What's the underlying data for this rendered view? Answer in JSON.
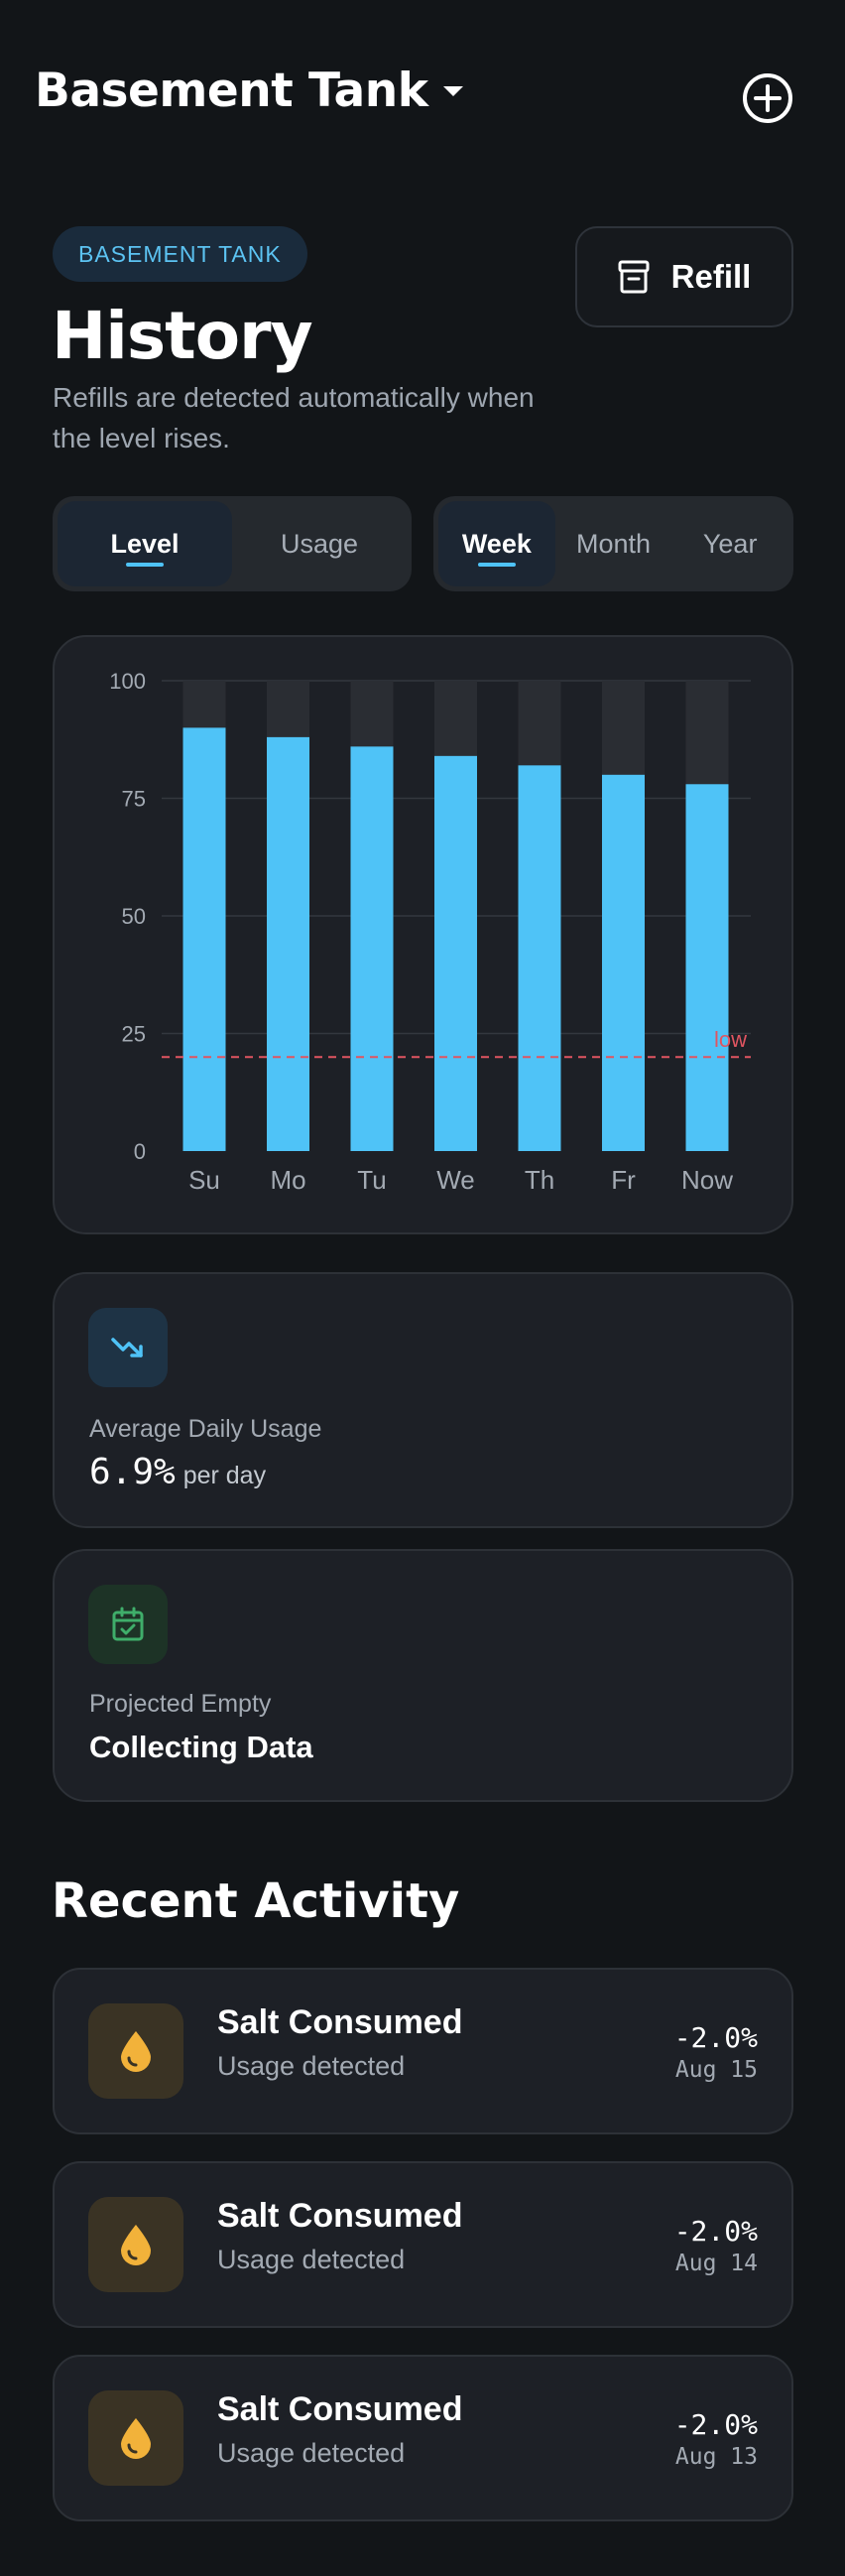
{
  "header": {
    "tank_name": "Basement Tank"
  },
  "badge": "BASEMENT TANK",
  "refill_label": "Refill",
  "page_title": "History",
  "subtitle": "Refills are detected automatically when the level rises.",
  "metric_toggle": {
    "options": [
      "Level",
      "Usage"
    ],
    "selected": "Level"
  },
  "period_toggle": {
    "options": [
      "Week",
      "Month",
      "Year"
    ],
    "selected": "Week"
  },
  "chart_data": {
    "type": "bar",
    "categories": [
      "Su",
      "Mo",
      "Tu",
      "We",
      "Th",
      "Fr",
      "Now"
    ],
    "values": [
      90,
      88,
      86,
      84,
      82,
      80,
      78
    ],
    "ylim": [
      0,
      100
    ],
    "y_ticks": [
      0,
      25,
      50,
      75,
      100
    ],
    "threshold": {
      "value": 20,
      "label": "low",
      "color": "#e05561"
    },
    "bar_color": "#4fc3f7",
    "track_color": "#2a2d33",
    "grid": true
  },
  "stats": {
    "avg_usage": {
      "label": "Average Daily Usage",
      "value": "6.9%",
      "unit": "per day",
      "icon": "trending-down-icon"
    },
    "projected_empty": {
      "label": "Projected Empty",
      "value": "Collecting Data",
      "icon": "calendar-check-icon"
    }
  },
  "recent_activity": {
    "title": "Recent Activity",
    "items": [
      {
        "title": "Salt Consumed",
        "subtitle": "Usage detected",
        "amount": "-2.0%",
        "date": "Aug 15",
        "icon": "drop-icon"
      },
      {
        "title": "Salt Consumed",
        "subtitle": "Usage detected",
        "amount": "-2.0%",
        "date": "Aug 14",
        "icon": "drop-icon"
      },
      {
        "title": "Salt Consumed",
        "subtitle": "Usage detected",
        "amount": "-2.0%",
        "date": "Aug 13",
        "icon": "drop-icon"
      }
    ]
  },
  "colors": {
    "accent": "#4fc3f7",
    "warning": "#f2b23a",
    "success": "#3fae6a",
    "danger": "#e05561"
  }
}
